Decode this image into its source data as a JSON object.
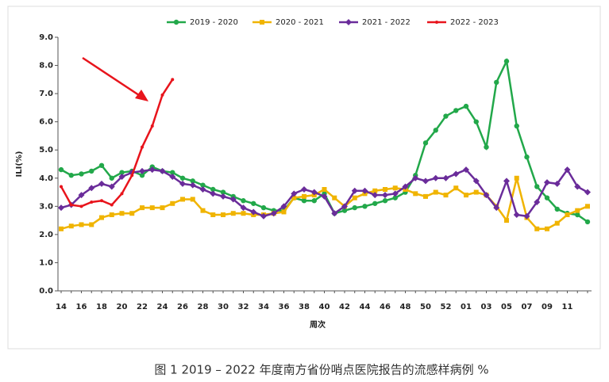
{
  "chart_data": {
    "type": "line",
    "caption": "图 1 2019 – 2022 年度南方省份哨点医院报告的流感样病例 %",
    "x_label": "周次",
    "y_label": "ILI(%)",
    "categories": [
      "14",
      null,
      "16",
      null,
      "18",
      null,
      "20",
      null,
      "22",
      null,
      "24",
      null,
      "26",
      null,
      "28",
      null,
      "30",
      null,
      "32",
      null,
      "34",
      null,
      "36",
      null,
      "38",
      null,
      "40",
      null,
      "42",
      null,
      "44",
      null,
      "46",
      null,
      "48",
      null,
      "50",
      null,
      "52",
      null,
      "01",
      null,
      "03",
      null,
      "05",
      null,
      "07",
      null,
      "09",
      null,
      "11",
      null,
      null
    ],
    "series": [
      {
        "name": "2019 - 2020",
        "color": "#22a84a",
        "marker": "circle",
        "values": [
          4.3,
          4.1,
          4.15,
          4.25,
          4.45,
          4.0,
          4.2,
          4.25,
          4.1,
          4.4,
          4.25,
          4.2,
          4.0,
          3.9,
          3.75,
          3.6,
          3.5,
          3.35,
          3.2,
          3.1,
          2.95,
          2.85,
          2.85,
          3.3,
          3.2,
          3.2,
          3.45,
          2.75,
          2.85,
          2.95,
          3.0,
          3.1,
          3.2,
          3.3,
          3.5,
          4.1,
          5.25,
          5.7,
          6.2,
          6.4,
          6.55,
          6.0,
          5.1,
          7.4,
          8.15,
          5.85,
          4.75,
          3.7,
          3.3,
          2.9,
          2.75,
          2.7,
          2.45
        ]
      },
      {
        "name": "2020 - 2021",
        "color": "#f0b400",
        "marker": "square",
        "values": [
          2.2,
          2.3,
          2.35,
          2.35,
          2.6,
          2.7,
          2.75,
          2.75,
          2.95,
          2.95,
          2.95,
          3.1,
          3.25,
          3.25,
          2.85,
          2.7,
          2.7,
          2.75,
          2.75,
          2.7,
          2.7,
          2.75,
          2.8,
          3.3,
          3.35,
          3.4,
          3.6,
          3.3,
          3.0,
          3.3,
          3.45,
          3.55,
          3.6,
          3.65,
          3.6,
          3.45,
          3.35,
          3.5,
          3.4,
          3.65,
          3.4,
          3.5,
          3.4,
          3.0,
          2.5,
          4.0,
          2.6,
          2.2,
          2.2,
          2.4,
          2.7,
          2.85,
          3.0
        ]
      },
      {
        "name": "2021 - 2022",
        "color": "#6a2c9a",
        "marker": "diamond",
        "values": [
          2.95,
          3.05,
          3.4,
          3.65,
          3.8,
          3.7,
          4.05,
          4.2,
          4.25,
          4.3,
          4.25,
          4.05,
          3.8,
          3.75,
          3.6,
          3.45,
          3.35,
          3.25,
          2.95,
          2.8,
          2.65,
          2.75,
          3.0,
          3.45,
          3.6,
          3.5,
          3.35,
          2.75,
          3.0,
          3.55,
          3.55,
          3.4,
          3.4,
          3.45,
          3.7,
          4.0,
          3.9,
          4.0,
          4.0,
          4.15,
          4.3,
          3.9,
          3.4,
          2.95,
          3.9,
          2.7,
          2.65,
          3.15,
          3.85,
          3.8,
          4.3,
          3.7,
          3.5
        ]
      },
      {
        "name": "2022 - 2023",
        "color": "#e8141c",
        "marker": "dot",
        "values": [
          3.7,
          3.05,
          3.0,
          3.15,
          3.2,
          3.05,
          3.45,
          4.1,
          5.1,
          5.85,
          6.95,
          7.5,
          null,
          null,
          null,
          null,
          null,
          null,
          null,
          null,
          null,
          null,
          null,
          null,
          null,
          null,
          null,
          null,
          null,
          null,
          null,
          null,
          null,
          null,
          null,
          null,
          null,
          null,
          null,
          null,
          null,
          null,
          null,
          null,
          null,
          null,
          null,
          null,
          null,
          null,
          null,
          null,
          null
        ]
      }
    ],
    "ylim": [
      0,
      9
    ],
    "yticks": [
      {
        "value": 0,
        "label": "0.0"
      },
      {
        "value": 1,
        "label": "1.0"
      },
      {
        "value": 2,
        "label": "2.0"
      },
      {
        "value": 3,
        "label": "3.0"
      },
      {
        "value": 4,
        "label": "4.0"
      },
      {
        "value": 5,
        "label": "5.0"
      },
      {
        "value": 6,
        "label": "6.0"
      },
      {
        "value": 7,
        "label": "7.0"
      },
      {
        "value": 8,
        "label": "8.0"
      },
      {
        "value": 9,
        "label": "9.0"
      }
    ],
    "legend": "top"
  }
}
